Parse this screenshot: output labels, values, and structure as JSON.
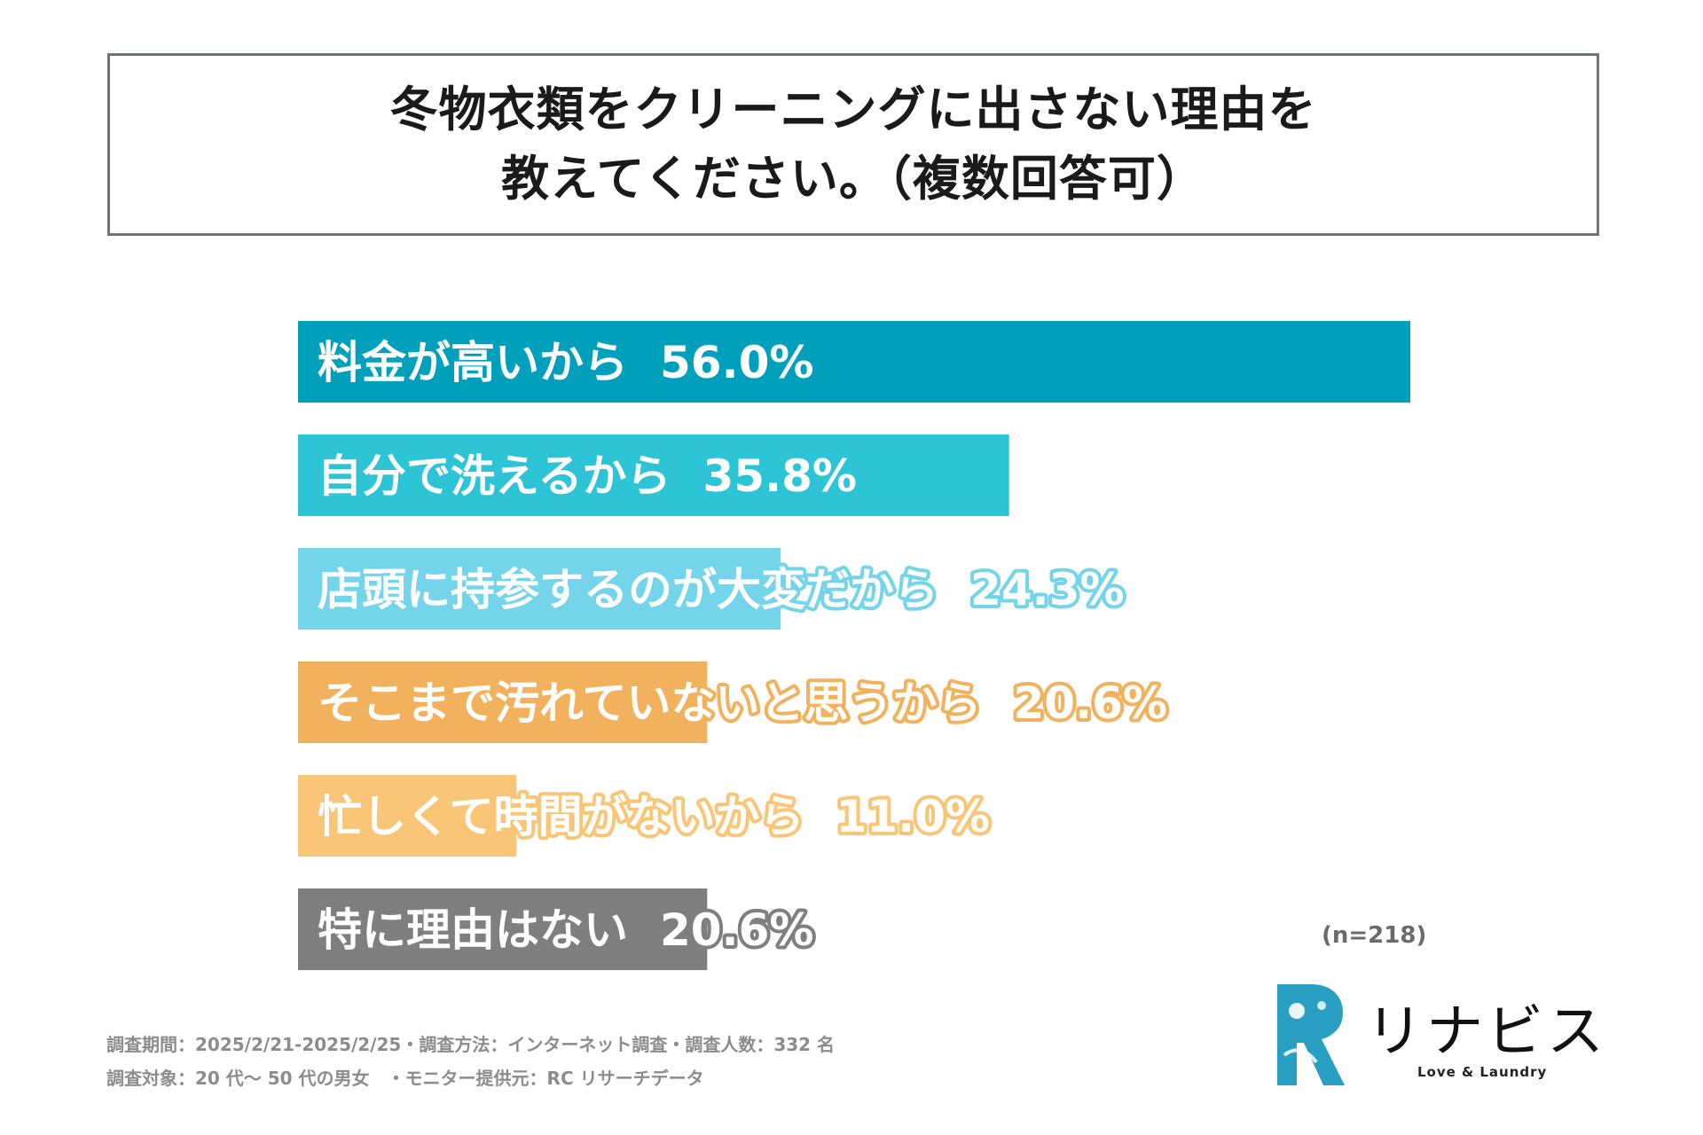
{
  "title": {
    "line1": "冬物衣類をクリーニングに出さない理由を",
    "line2": "教えてください。（複数回答可）"
  },
  "chart_data": {
    "type": "bar",
    "orientation": "horizontal",
    "xlim": [
      0,
      56
    ],
    "grid": false,
    "legend": "none",
    "categories": [
      "料金が高いから",
      "自分で洗えるから",
      "店頭に持参するのが大変だから",
      "そこまで汚れていないと思うから",
      "忙しくて時間がないから",
      "特に理由はない"
    ],
    "values": [
      56.0,
      35.8,
      24.3,
      20.6,
      11.0,
      20.6
    ],
    "value_labels": [
      "56.0%",
      "35.8%",
      "24.3%",
      "20.6%",
      "11.0%",
      "20.6%"
    ],
    "colors": [
      "#00a0bd",
      "#2dc4d6",
      "#74d4ea",
      "#f2b25d",
      "#f9c678",
      "#7f7f7f"
    ]
  },
  "sample_size": "(n=218)",
  "footnotes": {
    "line1": "調査期間：2025/2/21-2025/2/25・調査方法：インターネット調査・調査人数：332 名",
    "line2": "調査対象：20 代〜 50 代の男女　・モニター提供元：RC リサーチデータ"
  },
  "logo": {
    "name": "リナビス",
    "tagline": "Love & Laundry",
    "colors": [
      "#2a9fc4",
      "#38b9c9",
      "#8fd3e0"
    ]
  }
}
